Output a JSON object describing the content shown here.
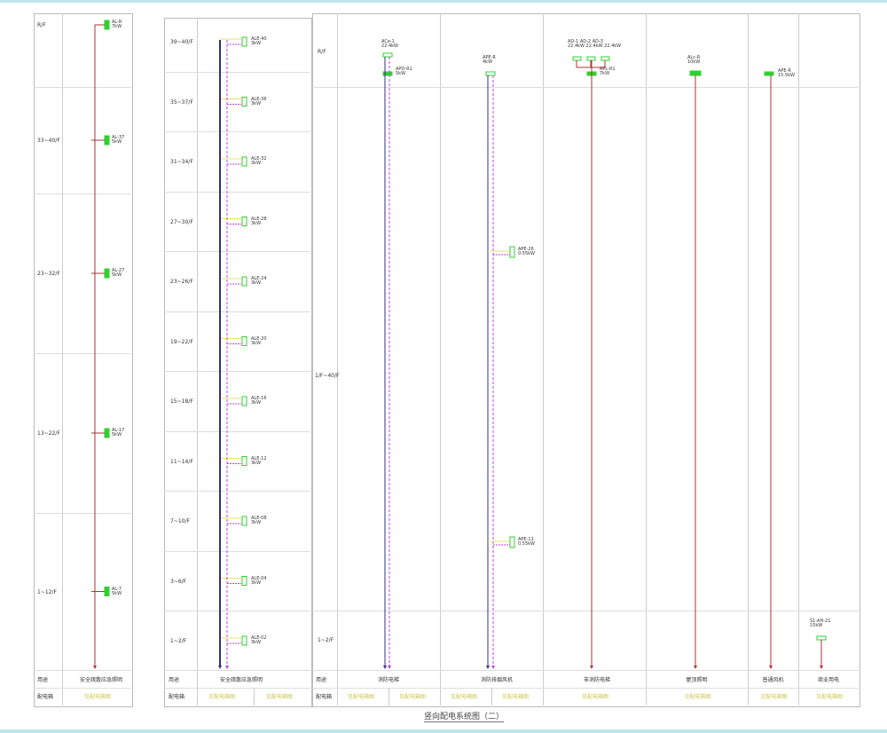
{
  "title": "竖向配电系统图（二）",
  "common": {
    "use_label": "用途",
    "box_label": "配电箱"
  },
  "panel1": {
    "floors": [
      "R/F",
      "33~40/F",
      "23~32/F",
      "13~22/F",
      "1~12/F"
    ],
    "boxes": [
      {
        "name": "AL-R",
        "power": "7kW"
      },
      {
        "name": "AL-37",
        "power": "5kW"
      },
      {
        "name": "AL-27",
        "power": "5kW"
      },
      {
        "name": "AL-17",
        "power": "5kW"
      },
      {
        "name": "AL-7",
        "power": "5kW"
      }
    ],
    "use": "安全疏散应急照明",
    "box": "见配电箱图"
  },
  "panel2": {
    "floors": [
      "39~40/F",
      "35~37/F",
      "31~34/F",
      "27~30/F",
      "23~26/F",
      "19~22/F",
      "15~18/F",
      "11~14/F",
      "7~10/F",
      "3~6/F",
      "1~2/F"
    ],
    "boxes": [
      {
        "name": "ALE-40",
        "power": "3kW"
      },
      {
        "name": "ALE-36",
        "power": "3kW"
      },
      {
        "name": "ALE-32",
        "power": "3kW"
      },
      {
        "name": "ALE-28",
        "power": "3kW"
      },
      {
        "name": "ALE-24",
        "power": "3kW"
      },
      {
        "name": "ALE-20",
        "power": "3kW"
      },
      {
        "name": "ALE-16",
        "power": "3kW"
      },
      {
        "name": "ALE-12",
        "power": "3kW"
      },
      {
        "name": "ALE-08",
        "power": "3kW"
      },
      {
        "name": "ALE-04",
        "power": "3kW"
      },
      {
        "name": "ALE-02",
        "power": "3kW"
      }
    ],
    "use": "安全疏散应急照明",
    "box": [
      "见配电箱图",
      "见配电箱图"
    ]
  },
  "panel3": {
    "floors": [
      "R/F",
      "1/F~40/F",
      "1~2/F"
    ],
    "columns": [
      {
        "top": [
          "ACe-1",
          "22.4kW"
        ],
        "sub": [
          "APD-R1",
          "5kW"
        ],
        "use": "消防电梯",
        "box": [
          "见配电箱图",
          "见配电箱图"
        ]
      },
      {
        "top": [
          "APE-R",
          "4kW"
        ],
        "mid": [
          [
            "APE-26",
            "0.55kW"
          ],
          [
            "APE-11",
            "0.55kW"
          ]
        ],
        "use": "消防排烟风机",
        "box": [
          "见配电箱图",
          "见配电箱图"
        ]
      },
      {
        "top": [
          "AD-1 AD-2 AD-3",
          "22.4kW 22.4kW 22.4kW"
        ],
        "sub": [
          "APL-R1",
          "7kW"
        ],
        "use": "非消防电梯",
        "box": [
          "见配电箱图"
        ]
      },
      {
        "top": [
          "ALc-R",
          "10kW"
        ],
        "use": "屋顶照明",
        "box": [
          "见配电箱图"
        ]
      },
      {
        "top": [
          "APE-R",
          "15.5kW"
        ],
        "use": "普通风机",
        "box": [
          "见配电箱图"
        ]
      },
      {
        "top": [
          "S1-AH-21",
          "15kW"
        ],
        "use": "商业用电",
        "box": [
          "见配电箱图"
        ]
      }
    ]
  },
  "colors": {
    "red_line": "#b03030",
    "blue_line": "#303080",
    "purple_line": "#c040e0",
    "green_box": "#30d030",
    "yellow": "#e8e070"
  }
}
